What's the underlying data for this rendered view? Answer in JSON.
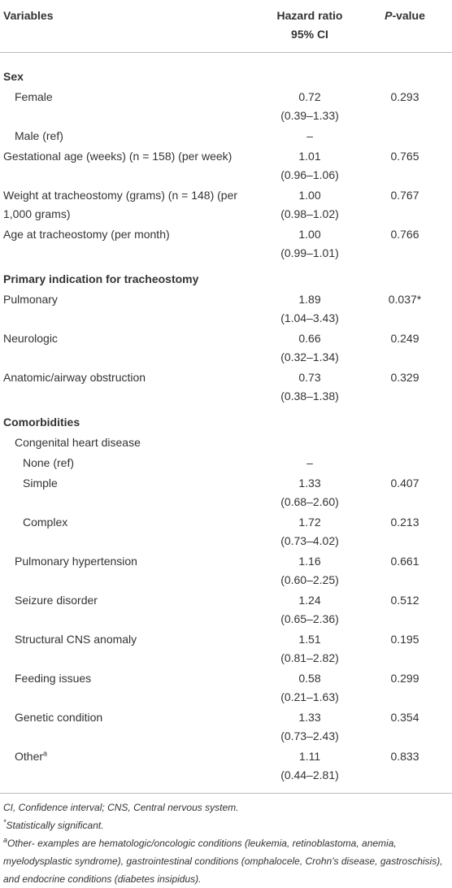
{
  "table": {
    "header": {
      "variables": "Variables",
      "hazard_ratio": "Hazard ratio",
      "ci": "95% CI",
      "p_value": "P-value"
    },
    "rows": [
      {
        "label": "Sex",
        "heading": true
      },
      {
        "label": "Female",
        "level": 1,
        "hr": "0.72",
        "ci": "(0.39–1.33)",
        "p": "0.293"
      },
      {
        "label": "Male (ref)",
        "level": 1,
        "hr": "–"
      },
      {
        "label": "Gestational age (weeks) (n = 158) (per week)",
        "level": 0,
        "hr": "1.01",
        "ci": "(0.96–1.06)",
        "p": "0.765"
      },
      {
        "label": "Weight at tracheostomy (grams) (n = 148) (per 1,000 grams)",
        "level": 0,
        "hr": "1.00",
        "ci": "(0.98–1.02)",
        "p": "0.767"
      },
      {
        "label": "Age at tracheostomy (per month)",
        "level": 0,
        "hr": "1.00",
        "ci": "(0.99–1.01)",
        "p": "0.766"
      },
      {
        "label": "Primary indication for tracheostomy",
        "heading": true
      },
      {
        "label": "Pulmonary",
        "level": 0,
        "hr": "1.89",
        "ci": "(1.04–3.43)",
        "p": "0.037*"
      },
      {
        "label": "Neurologic",
        "level": 0,
        "hr": "0.66",
        "ci": "(0.32–1.34)",
        "p": "0.249"
      },
      {
        "label": "Anatomic/airway obstruction",
        "level": 0,
        "hr": "0.73",
        "ci": "(0.38–1.38)",
        "p": "0.329"
      },
      {
        "label": "Comorbidities",
        "heading": true
      },
      {
        "label": "Congenital heart disease",
        "level": 1
      },
      {
        "label": "None (ref)",
        "level": 2,
        "hr": "–"
      },
      {
        "label": "Simple",
        "level": 2,
        "hr": "1.33",
        "ci": "(0.68–2.60)",
        "p": "0.407"
      },
      {
        "label": "Complex",
        "level": 2,
        "hr": "1.72",
        "ci": "(0.73–4.02)",
        "p": "0.213"
      },
      {
        "label": "Pulmonary hypertension",
        "level": 1,
        "hr": "1.16",
        "ci": "(0.60–2.25)",
        "p": "0.661"
      },
      {
        "label": "Seizure disorder",
        "level": 1,
        "hr": "1.24",
        "ci": "(0.65–2.36)",
        "p": "0.512"
      },
      {
        "label": "Structural CNS anomaly",
        "level": 1,
        "hr": "1.51",
        "ci": "(0.81–2.82)",
        "p": "0.195"
      },
      {
        "label": "Feeding issues",
        "level": 1,
        "hr": "0.58",
        "ci": "(0.21–1.63)",
        "p": "0.299"
      },
      {
        "label": "Genetic condition",
        "level": 1,
        "hr": "1.33",
        "ci": "(0.73–2.43)",
        "p": "0.354"
      },
      {
        "label": "Other",
        "sup": "a",
        "level": 1,
        "hr": "1.11",
        "ci": "(0.44–2.81)",
        "p": "0.833"
      }
    ]
  },
  "footnotes": [
    {
      "text": "CI, Confidence interval; CNS, Central nervous system.",
      "italic": true
    },
    {
      "marker": "*",
      "text": "Statistically significant.",
      "italic": true
    },
    {
      "marker": "a",
      "text": "Other- examples are hematologic/oncologic conditions (leukemia, retinoblastoma, anemia, myelodysplastic syndrome), gastrointestinal conditions (omphalocele, Crohn's disease, gastroschisis), and endocrine conditions (diabetes insipidus).",
      "italic": true
    }
  ]
}
